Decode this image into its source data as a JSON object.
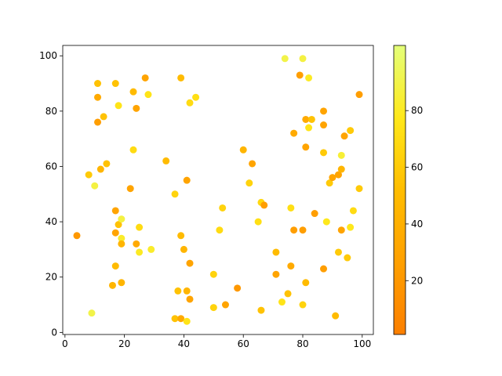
{
  "chart_data": {
    "type": "scatter",
    "x": [
      4,
      9,
      8,
      10,
      11,
      11,
      11,
      12,
      13,
      14,
      16,
      17,
      17,
      17,
      17,
      18,
      18,
      19,
      19,
      19,
      19,
      22,
      23,
      23,
      24,
      24,
      25,
      25,
      27,
      28,
      29,
      34,
      37,
      37,
      38,
      39,
      39,
      39,
      40,
      41,
      41,
      41,
      42,
      42,
      42,
      44,
      50,
      50,
      52,
      53,
      54,
      58,
      60,
      62,
      63,
      65,
      66,
      66,
      67,
      71,
      71,
      73,
      74,
      75,
      76,
      76,
      77,
      77,
      79,
      80,
      80,
      80,
      81,
      81,
      81,
      82,
      82,
      83,
      84,
      87,
      87,
      87,
      87,
      88,
      89,
      90,
      91,
      92,
      92,
      93,
      93,
      93,
      94,
      95,
      96,
      96,
      97,
      99,
      99
    ],
    "y": [
      35,
      7,
      57,
      53,
      90,
      85,
      76,
      59,
      78,
      61,
      17,
      90,
      44,
      36,
      24,
      82,
      39,
      41,
      34,
      32,
      18,
      52,
      87,
      66,
      81,
      32,
      38,
      29,
      92,
      86,
      30,
      62,
      50,
      5,
      15,
      92,
      35,
      5,
      30,
      55,
      15,
      4,
      83,
      25,
      12,
      85,
      21,
      9,
      37,
      45,
      10,
      16,
      66,
      54,
      61,
      40,
      47,
      8,
      46,
      29,
      21,
      11,
      99,
      14,
      45,
      24,
      72,
      37,
      93,
      99,
      37,
      10,
      77,
      67,
      18,
      92,
      74,
      77,
      43,
      80,
      75,
      65,
      23,
      40,
      54,
      56,
      6,
      57,
      29,
      64,
      59,
      37,
      71,
      27,
      73,
      38,
      44,
      86,
      52
    ],
    "c": [
      20,
      90,
      60,
      88,
      55,
      35,
      25,
      45,
      55,
      55,
      45,
      55,
      30,
      30,
      50,
      75,
      55,
      88,
      82,
      45,
      45,
      30,
      50,
      70,
      30,
      35,
      70,
      80,
      30,
      75,
      82,
      50,
      65,
      55,
      55,
      50,
      50,
      35,
      45,
      30,
      45,
      75,
      70,
      30,
      30,
      72,
      65,
      65,
      70,
      65,
      30,
      20,
      45,
      65,
      30,
      72,
      68,
      55,
      25,
      50,
      30,
      75,
      90,
      55,
      72,
      35,
      35,
      25,
      25,
      88,
      25,
      65,
      35,
      30,
      50,
      80,
      75,
      55,
      25,
      30,
      30,
      60,
      25,
      78,
      60,
      30,
      50,
      30,
      60,
      85,
      45,
      30,
      30,
      60,
      60,
      78,
      70,
      25,
      60
    ],
    "xlim": [
      -0.75,
      103.75
    ],
    "ylim": [
      -0.75,
      103.75
    ],
    "xticks": [
      0,
      20,
      40,
      60,
      80,
      100
    ],
    "yticks": [
      0,
      20,
      40,
      60,
      80,
      100
    ],
    "clim": [
      1,
      103
    ],
    "cticks": [
      20,
      40,
      60,
      80
    ],
    "colormap": [
      "#fc7f00",
      "#ffa000",
      "#ffbd00",
      "#ffe81a",
      "#e4ff7a"
    ]
  }
}
